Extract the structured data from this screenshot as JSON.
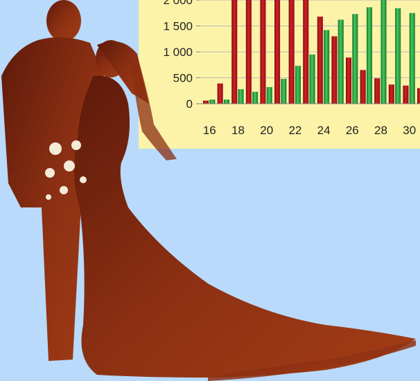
{
  "colors": {
    "background": "#b9dafa",
    "chart_background": "#fdf3a8",
    "series_red": "#c0171c",
    "series_green": "#2fb34a",
    "silhouette": "#8a2e12"
  },
  "chart_data": {
    "type": "bar",
    "x": [
      16,
      17,
      18,
      19,
      20,
      21,
      22,
      23,
      24,
      25,
      26,
      27,
      28,
      29,
      30,
      31
    ],
    "x_tick_labels": [
      "16",
      "18",
      "20",
      "22",
      "24",
      "26",
      "28",
      "30"
    ],
    "y_tick_labels": [
      "0",
      "500",
      "1 000",
      "1 500",
      "2 000"
    ],
    "y_ticks": [
      0,
      500,
      1000,
      1500,
      2000
    ],
    "ylim": [
      0,
      2200
    ],
    "grid": true,
    "series": [
      {
        "values": [
          60,
          390,
          2400,
          2400,
          2400,
          2400,
          2400,
          2400,
          1680,
          1300,
          890,
          650,
          490,
          370,
          350,
          300
        ]
      },
      {
        "values": [
          80,
          80,
          280,
          230,
          320,
          480,
          730,
          950,
          1420,
          1620,
          1730,
          1860,
          2000,
          1840,
          1750,
          1700
        ]
      }
    ]
  }
}
